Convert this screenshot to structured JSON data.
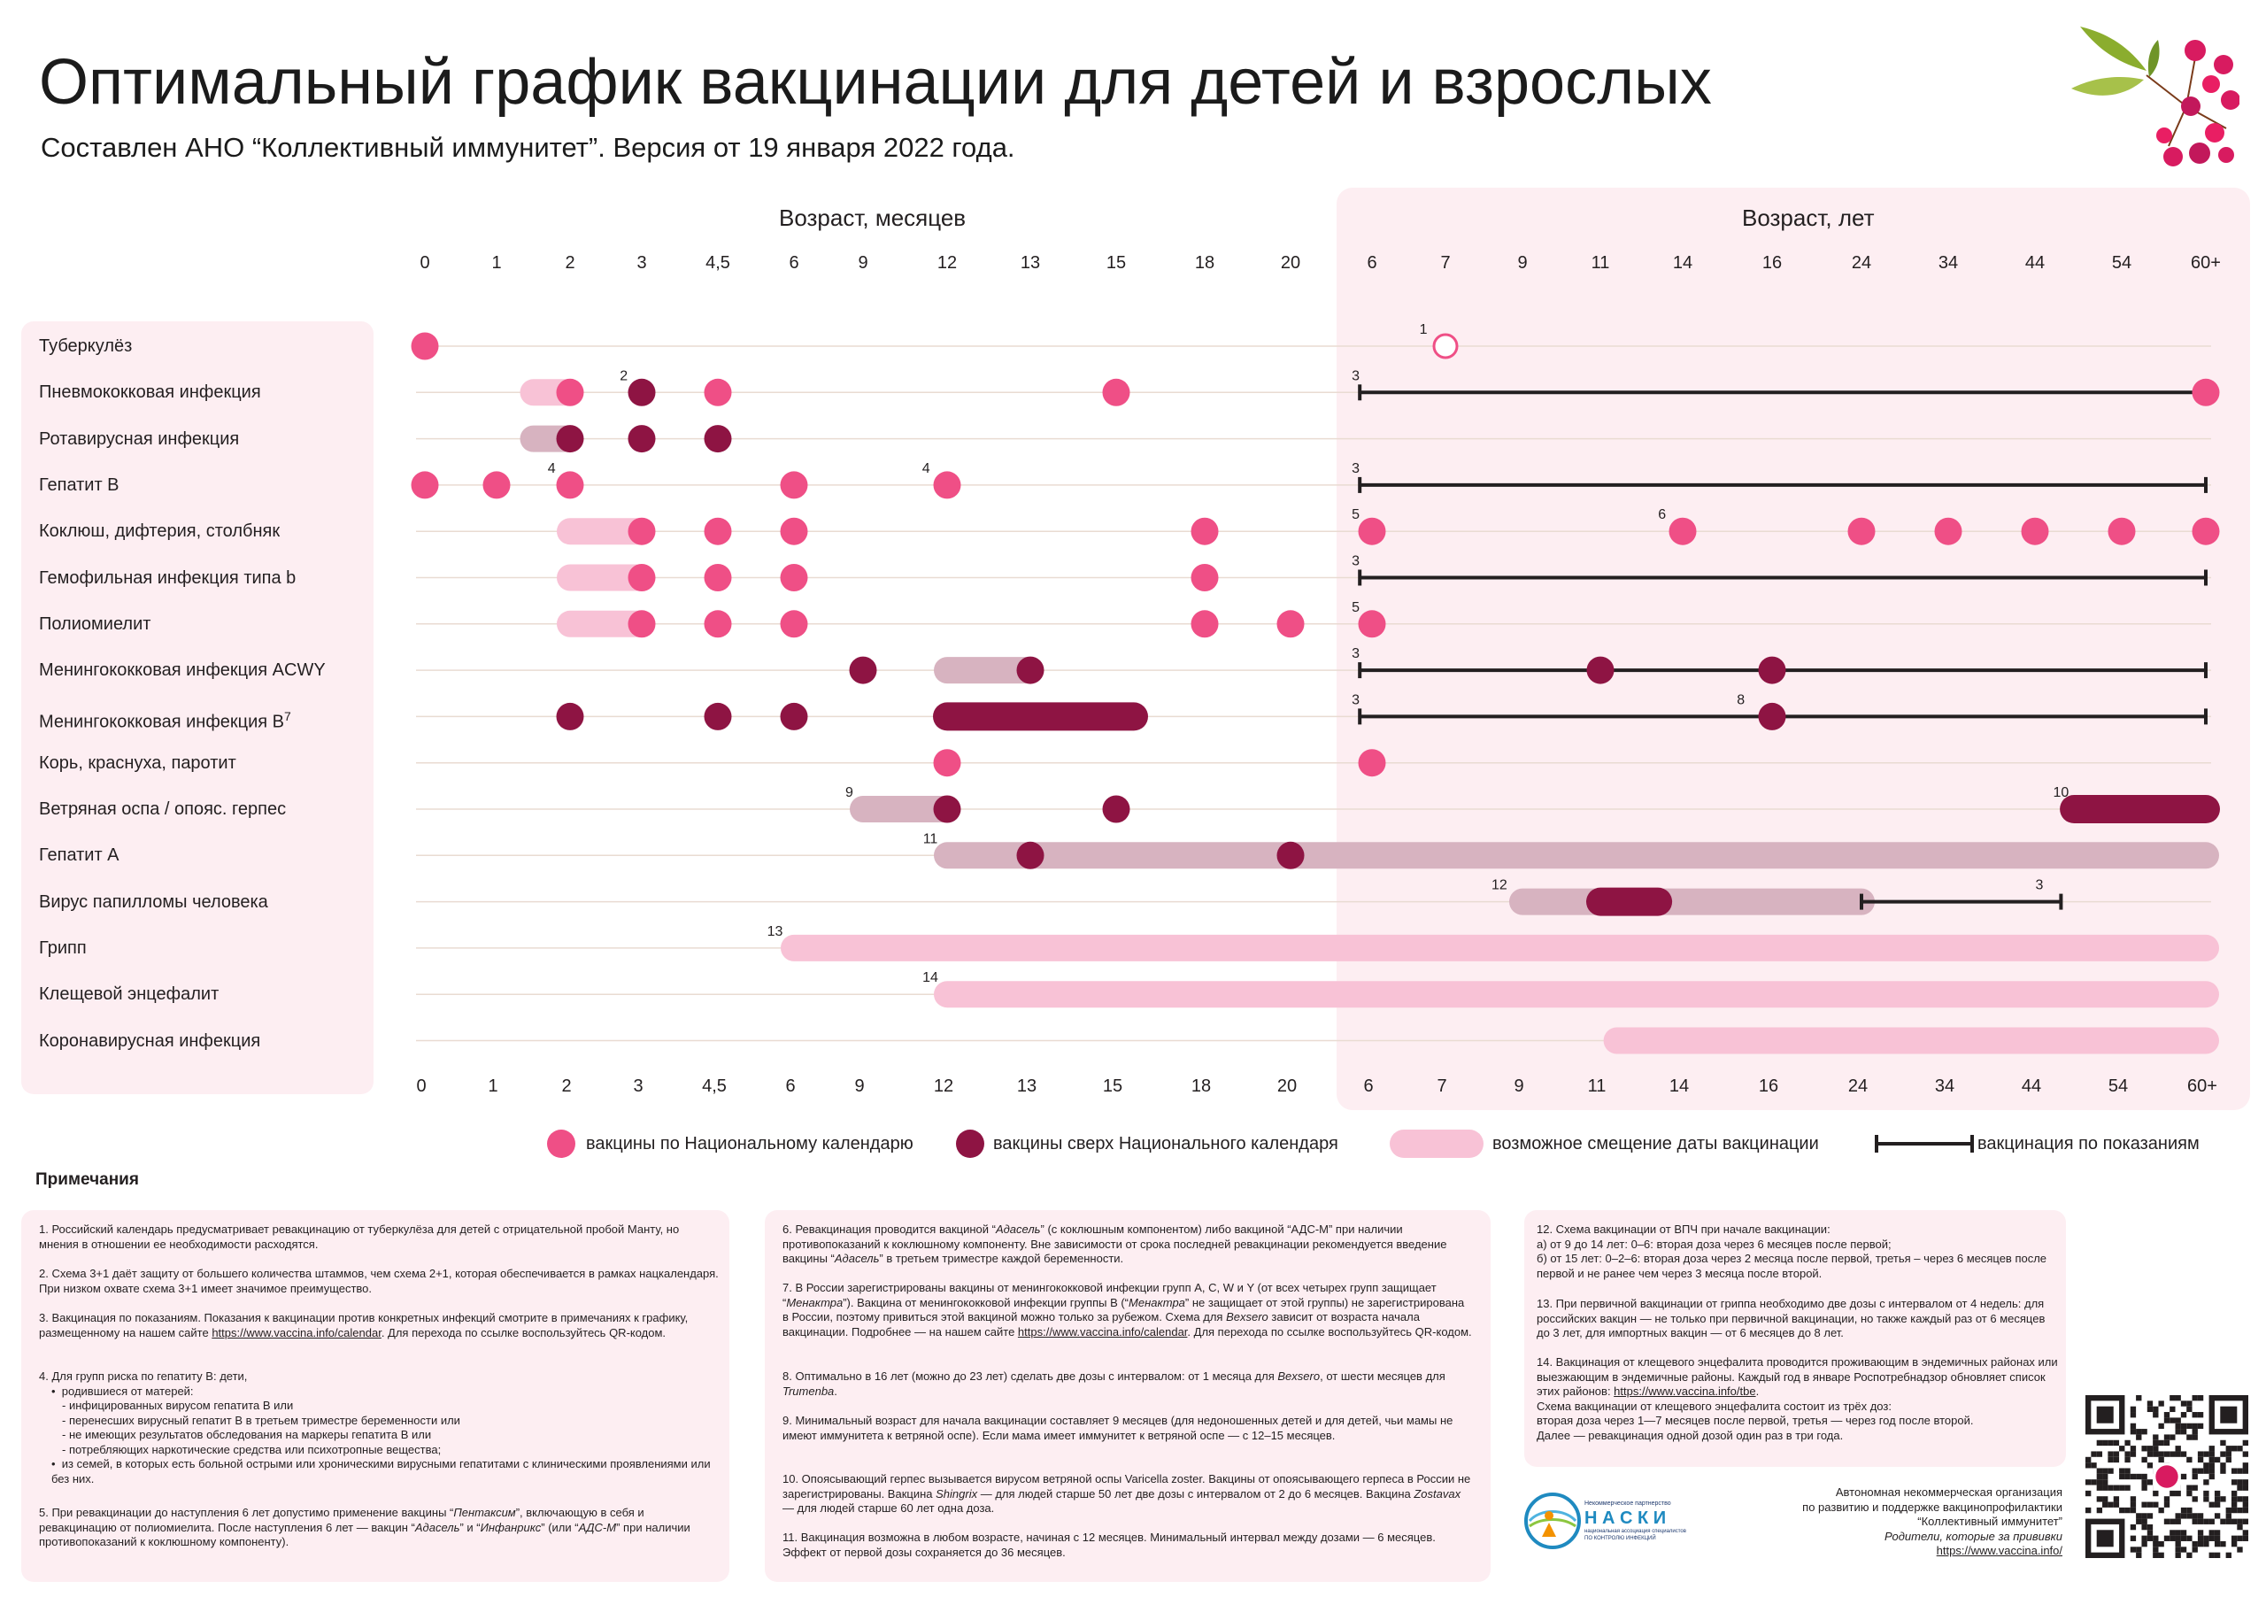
{
  "header": {
    "title": "Оптимальный график вакцинации для детей и взрослых",
    "subtitle": "Составлен АНО “Коллективный иммунитет”. Версия от 19 января 2022 года."
  },
  "colors": {
    "national": "#ef4f86",
    "extra": "#8e1443",
    "shift_light": "#f8c2d6",
    "shift_dark": "#d7b3c0",
    "background_pink": "#fdeef2"
  },
  "chart_data": {
    "type": "timeline",
    "axis": {
      "months_label": "Возраст, месяцев",
      "years_label": "Возраст, лет",
      "months_ticks": [
        "0",
        "1",
        "2",
        "3",
        "4,5",
        "6",
        "9",
        "12",
        "13",
        "15",
        "18",
        "20"
      ],
      "years_ticks": [
        "6",
        "7",
        "9",
        "11",
        "14",
        "16",
        "24",
        "34",
        "44",
        "54",
        "60+"
      ]
    },
    "rows": [
      {
        "label": "Туберкулёз",
        "label_sup": "",
        "points": [
          {
            "at": 0,
            "kind": "national"
          },
          {
            "at": 13,
            "kind": "outline"
          }
        ],
        "bars": [],
        "lines": [],
        "notes": [
          {
            "at": 12.7,
            "text": "1"
          }
        ]
      },
      {
        "label": "Пневмококковая инфекция",
        "label_sup": "",
        "points": [
          {
            "at": 2,
            "kind": "national"
          },
          {
            "at": 3,
            "kind": "extra"
          },
          {
            "at": 4,
            "kind": "national"
          },
          {
            "at": 9,
            "kind": "national"
          },
          {
            "at": 22,
            "kind": "national"
          }
        ],
        "bars": [
          {
            "from": 1.5,
            "to": 2,
            "kind": "shift_light"
          }
        ],
        "lines": [
          {
            "from": 11.85,
            "to": 22
          }
        ],
        "notes": [
          {
            "at": 2.75,
            "text": "2"
          },
          {
            "at": 11.8,
            "text": "3"
          }
        ]
      },
      {
        "label": "Ротавирусная инфекция",
        "label_sup": "",
        "points": [
          {
            "at": 2,
            "kind": "extra"
          },
          {
            "at": 3,
            "kind": "extra"
          },
          {
            "at": 4,
            "kind": "extra"
          }
        ],
        "bars": [
          {
            "from": 1.5,
            "to": 2,
            "kind": "shift_dark"
          }
        ],
        "lines": [],
        "notes": []
      },
      {
        "label": "Гепатит B",
        "label_sup": "",
        "points": [
          {
            "at": 0,
            "kind": "national"
          },
          {
            "at": 1,
            "kind": "national"
          },
          {
            "at": 2,
            "kind": "national"
          },
          {
            "at": 5,
            "kind": "national"
          },
          {
            "at": 7,
            "kind": "national"
          }
        ],
        "bars": [],
        "lines": [
          {
            "from": 11.85,
            "to": 22.15
          }
        ],
        "notes": [
          {
            "at": 1.75,
            "text": "4"
          },
          {
            "at": 6.75,
            "text": "4"
          },
          {
            "at": 11.8,
            "text": "3"
          }
        ]
      },
      {
        "label": "Коклюш, дифтерия, столбняк",
        "label_sup": "",
        "points": [
          {
            "at": 3,
            "kind": "national"
          },
          {
            "at": 4,
            "kind": "national"
          },
          {
            "at": 5,
            "kind": "national"
          },
          {
            "at": 10,
            "kind": "national"
          },
          {
            "at": 12,
            "kind": "national"
          },
          {
            "at": 16,
            "kind": "national"
          },
          {
            "at": 18,
            "kind": "national"
          },
          {
            "at": 19,
            "kind": "national"
          },
          {
            "at": 20,
            "kind": "national"
          },
          {
            "at": 21,
            "kind": "national"
          },
          {
            "at": 22,
            "kind": "national"
          }
        ],
        "bars": [
          {
            "from": 2,
            "to": 3,
            "kind": "shift_light"
          }
        ],
        "lines": [],
        "notes": [
          {
            "at": 11.8,
            "text": "5"
          },
          {
            "at": 15.75,
            "text": "6"
          }
        ]
      },
      {
        "label": "Гемофильная инфекция типа b",
        "label_sup": "",
        "points": [
          {
            "at": 3,
            "kind": "national"
          },
          {
            "at": 4,
            "kind": "national"
          },
          {
            "at": 5,
            "kind": "national"
          },
          {
            "at": 10,
            "kind": "national"
          }
        ],
        "bars": [
          {
            "from": 2,
            "to": 3,
            "kind": "shift_light"
          }
        ],
        "lines": [
          {
            "from": 11.85,
            "to": 22.15
          }
        ],
        "notes": [
          {
            "at": 11.8,
            "text": "3"
          }
        ]
      },
      {
        "label": "Полиомиелит",
        "label_sup": "",
        "points": [
          {
            "at": 3,
            "kind": "national"
          },
          {
            "at": 4,
            "kind": "national"
          },
          {
            "at": 5,
            "kind": "national"
          },
          {
            "at": 10,
            "kind": "national"
          },
          {
            "at": 11,
            "kind": "national"
          },
          {
            "at": 12,
            "kind": "national"
          }
        ],
        "bars": [
          {
            "from": 2,
            "to": 3,
            "kind": "shift_light"
          }
        ],
        "lines": [],
        "notes": [
          {
            "at": 11.8,
            "text": "5"
          }
        ]
      },
      {
        "label": "Менингококковая инфекция ACWY",
        "label_sup": "",
        "points": [
          {
            "at": 6,
            "kind": "extra"
          },
          {
            "at": 8,
            "kind": "extra"
          },
          {
            "at": 15,
            "kind": "extra"
          },
          {
            "at": 17,
            "kind": "extra"
          }
        ],
        "bars": [
          {
            "from": 7,
            "to": 8,
            "kind": "shift_dark"
          }
        ],
        "lines": [
          {
            "from": 11.85,
            "to": 22.15
          }
        ],
        "notes": [
          {
            "at": 11.8,
            "text": "3"
          }
        ]
      },
      {
        "label": "Менингококковая инфекция B",
        "label_sup": "7",
        "points": [
          {
            "at": 2,
            "kind": "extra"
          },
          {
            "at": 4,
            "kind": "extra"
          },
          {
            "at": 5,
            "kind": "extra"
          },
          {
            "at": 17,
            "kind": "extra"
          }
        ],
        "bars": [
          {
            "from": 7,
            "to": 9.2,
            "kind": "extra"
          }
        ],
        "lines": [
          {
            "from": 11.85,
            "to": 22.15
          }
        ],
        "notes": [
          {
            "at": 11.8,
            "text": "3"
          },
          {
            "at": 16.65,
            "text": "8"
          }
        ]
      },
      {
        "label": "Корь, краснуха, паротит",
        "label_sup": "",
        "points": [
          {
            "at": 7,
            "kind": "national"
          },
          {
            "at": 12,
            "kind": "national"
          }
        ],
        "bars": [],
        "lines": [],
        "notes": []
      },
      {
        "label": "Ветряная оспа / опояс. герпес",
        "label_sup": "",
        "points": [
          {
            "at": 7,
            "kind": "extra"
          },
          {
            "at": 9,
            "kind": "extra"
          }
        ],
        "bars": [
          {
            "from": 6,
            "to": 7,
            "kind": "shift_dark"
          },
          {
            "at_from": 20.45,
            "from": 20.45,
            "to": 22.15,
            "kind": "extra"
          }
        ],
        "lines": [],
        "notes": [
          {
            "at": 5.8,
            "text": "9"
          },
          {
            "at": 20.3,
            "text": "10"
          }
        ]
      },
      {
        "label": "Гепатит А",
        "label_sup": "",
        "points": [
          {
            "at": 8,
            "kind": "extra"
          },
          {
            "at": 11,
            "kind": "extra"
          }
        ],
        "bars": [
          {
            "from": 7,
            "to": 22.15,
            "kind": "shift_dark"
          }
        ],
        "lines": [],
        "notes": [
          {
            "at": 6.8,
            "text": "11"
          }
        ]
      },
      {
        "label": "Вирус папилломы человека",
        "label_sup": "",
        "points": [],
        "bars": [
          {
            "from": 14,
            "to": 18,
            "kind": "shift_dark"
          },
          {
            "from": 15,
            "to": 15.7,
            "kind": "extra"
          }
        ],
        "lines": [
          {
            "from": 18,
            "to": 20.3
          }
        ],
        "notes": [
          {
            "at": 13.7,
            "text": "12"
          },
          {
            "at": 20.05,
            "text": "3"
          }
        ]
      },
      {
        "label": "Грипп",
        "label_sup": "",
        "points": [],
        "bars": [
          {
            "from": 5,
            "to": 22.15,
            "kind": "shift_light"
          }
        ],
        "lines": [],
        "notes": [
          {
            "at": 4.75,
            "text": "13"
          }
        ]
      },
      {
        "label": "Клещевой энцефалит",
        "label_sup": "",
        "points": [],
        "bars": [
          {
            "from": 7,
            "to": 22.15,
            "kind": "shift_light"
          }
        ],
        "lines": [],
        "notes": [
          {
            "at": 6.8,
            "text": "14"
          }
        ]
      },
      {
        "label": "Коронавирусная инфекция",
        "label_sup": "",
        "points": [],
        "bars": [
          {
            "from": 15.2,
            "to": 22.15,
            "kind": "shift_light"
          }
        ],
        "lines": [],
        "notes": []
      }
    ]
  },
  "legend": {
    "national": "вакцины по Национальному календарю",
    "extra": "вакцины сверх Национального календаря",
    "shift": "возможное смещение даты вакцинации",
    "indication": "вакцинация по показаниям"
  },
  "notes": {
    "title": "Примечания",
    "n1": "1. Российский календарь предусматривает ревакцинацию от туберкулёза для детей с отрицательной пробой Манту, но мнения в отношении ее необходимости расходятся.",
    "n2": "2. Схема 3+1 даёт защиту от большего количества штаммов, чем схема 2+1, которая обеспечивается в рамках нацкалендаря. При низком охвате схема 3+1 имеет значимое преимущество.",
    "n3a": "3. Вакцинация по показаниям. Показания к вакцинации против конкретных инфекций смотрите в примечаниях к графику, размещенному на нашем сайте",
    "n3link": "https://www.vaccina.info/calendar",
    "n3b": ". Для перехода  по ссылке воспользуйтесь QR-кодом.",
    "n4head": "4. Для групп риска по гепатиту В: дети,",
    "n4b1": "родившиеся от матерей:",
    "n4s1": "- инфицированных вирусом гепатита В или",
    "n4s2": "- перенесших вирусный гепатит В в третьем триместре беременности или",
    "n4s3": "- не имеющих результатов обследования на маркеры гепатита В или",
    "n4s4": "- потребляющих наркотические средства или психотропные вещества;",
    "n4b2": "из семей, в которых есть больной острыми или хроническими вирусными гепатитами с клиническими проявлениями или без них.",
    "n5a": "5. При ревакцинации до наступления 6 лет допустимо применение вакцины “",
    "n5i1": "Пентаксим",
    "n5b": "”, включающую в себя и ревакцинацию от полиомиелита. После наступления 6 лет —  вакцин “",
    "n5i2": "Адасель",
    "n5c": "” и “",
    "n5i3": "Инфанрикс",
    "n5d": "” (или “",
    "n5i4": "АДС-М",
    "n5e": "” при наличии противопоказаний к коклюшному компоненту).",
    "n6a": "6. Ревакцинация проводится вакциной “",
    "n6i1": "Адасель",
    "n6b": "” (с коклюшным компонентом) либо вакциной “АДС-М” при наличии противопоказаний к коклюшному компоненту. Вне зависимости от срока последней ревакцинации рекомендуется введение вакцины “",
    "n6i2": "Адасель",
    "n6c": "” в третьем триместре каждой беременности.",
    "n7a": "7. В России зарегистрированы вакцины от менингококковой инфекции групп A, C, W и Y (от всех четырех групп защищает “",
    "n7i1": "Менактра",
    "n7b": "”). Вакцина от менингококковой инфекции группы В (“",
    "n7i2": "Менактра",
    "n7c": "” не защищает от этой группы) не зарегистрирована в России, поэтому привиться этой вакциной можно только за рубежом. Схема для ",
    "n7i3": "Bexsero",
    "n7d": " зависит от возраста начала вакцинации. Подробнее — на нашем сайте ",
    "n7link": "https://www.vaccina.info/calendar",
    "n7e": ". Для перехода по ссылке воспользуйтесь QR-кодом.",
    "n8a": "8. Оптимально в 16 лет (можно до 23 лет) сделать две дозы с интервалом: от 1 месяца для ",
    "n8i1": "Bexsero",
    "n8b": ", от шести месяцев для ",
    "n8i2": "Trumenba",
    "n8c": ".",
    "n9": "9. Минимальный возраст для начала вакцинации составляет 9 месяцев (для недоношенных детей и для детей, чьи мамы не имеют иммунитета к ветряной оспе). Если мама имеет иммунитет к ветряной оспе — с 12–15 месяцев.",
    "n10a": "10. Опоясывающий герпес вызывается вирусом ветряной оспы Varicella zoster. Вакцины от опоясывающего герпеса в России не зарегистрированы. Вакцина ",
    "n10i1": "Shingrix",
    "n10b": " — для людей старше 50 лет две дозы с интервалом от 2 до 6 месяцев. Вакцина ",
    "n10i2": "Zostavax",
    "n10c": " — для людей старше 60 лет одна доза.",
    "n11": "11. Вакцинация возможна в любом возрасте, начиная с 12 месяцев. Минимальный интервал между дозами — 6 месяцев. Эффект от первой дозы сохраняется до 36 месяцев.",
    "n12": "12. Схема вакцинации от ВПЧ при начале вакцинации:",
    "n12a": "а) от 9 до 14 лет: 0–6: вторая доза через 6 месяцев после первой;",
    "n12b": "б) от 15 лет: 0–2–6: вторая доза через 2 месяца после первой, третья – через 6 месяцев после первой и не ранее чем через 3 месяца после второй.",
    "n13": "13. При первичной вакцинации от гриппа необходимо две дозы с интервалом от 4 недель: для российских вакцин — не только при первичной вакцинации, но также каждый раз от 6 месяцев до 3 лет, для импортных вакцин — от 6 месяцев до 8 лет.",
    "n14a": "14. Вакцинация от клещевого энцефалита проводится проживающим в эндемичных районах или выезжающим в эндемичные районы. Каждый год в январе Роспотребнадзор обновляет список этих районов: ",
    "n14link": "https://www.vaccina.info/tbe",
    "n14b": ".",
    "n14c": "Схема вакцинации от клещевого энцефалита состоит из трёх доз:",
    "n14d": "вторая доза через 1—7 месяцев после первой, третья — через год после второй.",
    "n14e": "Далее — ревакцинация одной дозой один раз в три года."
  },
  "org": {
    "line1": "Автономная некоммерческая организация",
    "line2": "по развитию и поддержке вакцинопрофилактики",
    "line3": "“Коллективный иммунитет”",
    "tagline": "Родители, которые за прививки",
    "url": "https://www.vaccina.info/",
    "nasci_top": "Некоммерческое партнерство",
    "nasci_name": "Н А С К И",
    "nasci_sub1": "национальная ассоциация специалистов",
    "nasci_sub2": "ПО КОНТРОЛЮ ИНФЕКЦИЙ"
  }
}
